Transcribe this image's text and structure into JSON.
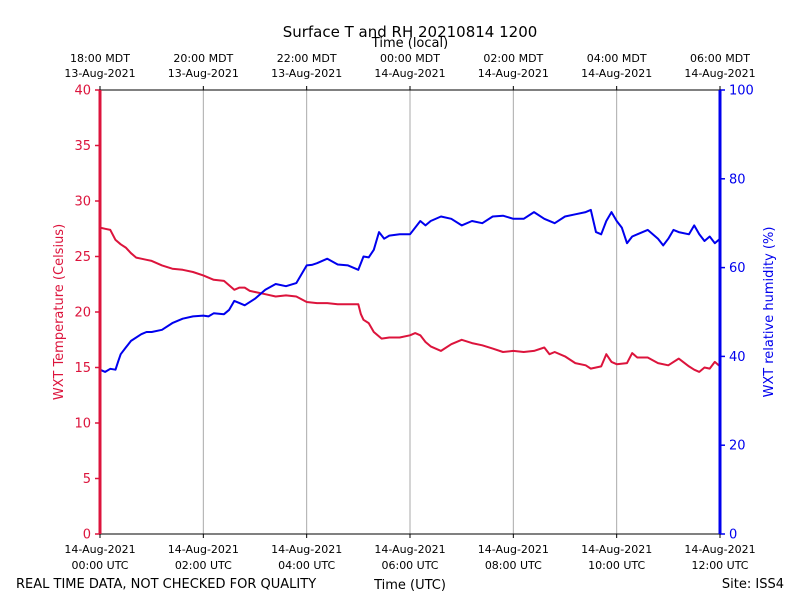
{
  "chart_data": {
    "type": "line",
    "title": "Surface T and RH 20210814 1200",
    "top_axis_label": "Time (local)",
    "xlabel": "Time (UTC)",
    "ylabel_left": "WXT Temperature (Celsius)",
    "ylabel_right": "WXT relative humidity (%)",
    "footer_left": "REAL TIME DATA, NOT CHECKED FOR QUALITY",
    "footer_right": "Site: ISS4",
    "xlim_hours": [
      0,
      12
    ],
    "ylim_left": [
      0,
      40
    ],
    "ylim_right": [
      0,
      100
    ],
    "y_ticks_left": [
      "0",
      "5",
      "10",
      "15",
      "20",
      "25",
      "30",
      "35",
      "40"
    ],
    "y_ticks_right": [
      "0",
      "20",
      "40",
      "60",
      "80",
      "100"
    ],
    "bottom_ticks": [
      {
        "hour": 0,
        "line1": "14-Aug-2021",
        "line2": "00:00 UTC"
      },
      {
        "hour": 2,
        "line1": "14-Aug-2021",
        "line2": "02:00 UTC"
      },
      {
        "hour": 4,
        "line1": "14-Aug-2021",
        "line2": "04:00 UTC"
      },
      {
        "hour": 6,
        "line1": "14-Aug-2021",
        "line2": "06:00 UTC"
      },
      {
        "hour": 8,
        "line1": "14-Aug-2021",
        "line2": "08:00 UTC"
      },
      {
        "hour": 10,
        "line1": "14-Aug-2021",
        "line2": "10:00 UTC"
      },
      {
        "hour": 12,
        "line1": "14-Aug-2021",
        "line2": "12:00 UTC"
      }
    ],
    "top_ticks": [
      {
        "hour": 0,
        "line1": "18:00 MDT",
        "line2": "13-Aug-2021"
      },
      {
        "hour": 2,
        "line1": "20:00 MDT",
        "line2": "13-Aug-2021"
      },
      {
        "hour": 4,
        "line1": "22:00 MDT",
        "line2": "13-Aug-2021"
      },
      {
        "hour": 6,
        "line1": "00:00 MDT",
        "line2": "14-Aug-2021"
      },
      {
        "hour": 8,
        "line1": "02:00 MDT",
        "line2": "14-Aug-2021"
      },
      {
        "hour": 10,
        "line1": "04:00 MDT",
        "line2": "14-Aug-2021"
      },
      {
        "hour": 12,
        "line1": "06:00 MDT",
        "line2": "14-Aug-2021"
      }
    ],
    "colors": {
      "temperature": "#dc143c",
      "humidity": "#0000ee",
      "grid": "#aaaaaa"
    },
    "series": [
      {
        "name": "WXT Temperature",
        "axis": "left",
        "x": [
          0,
          0.1,
          0.2,
          0.3,
          0.4,
          0.5,
          0.6,
          0.7,
          0.8,
          0.9,
          1.0,
          1.2,
          1.4,
          1.6,
          1.8,
          2.0,
          2.2,
          2.4,
          2.6,
          2.7,
          2.8,
          2.9,
          3.0,
          3.2,
          3.4,
          3.6,
          3.8,
          4.0,
          4.2,
          4.4,
          4.6,
          4.8,
          5.0,
          5.05,
          5.1,
          5.2,
          5.3,
          5.45,
          5.6,
          5.8,
          6.0,
          6.1,
          6.2,
          6.3,
          6.4,
          6.6,
          6.8,
          7.0,
          7.2,
          7.4,
          7.6,
          7.8,
          8.0,
          8.2,
          8.4,
          8.6,
          8.7,
          8.8,
          9.0,
          9.2,
          9.4,
          9.5,
          9.7,
          9.8,
          9.9,
          10.0,
          10.2,
          10.3,
          10.4,
          10.6,
          10.8,
          11.0,
          11.2,
          11.4,
          11.5,
          11.6,
          11.7,
          11.8,
          11.9,
          12.0
        ],
        "values": [
          27.6,
          27.5,
          27.4,
          26.5,
          26.1,
          25.8,
          25.3,
          24.9,
          24.8,
          24.7,
          24.6,
          24.2,
          23.9,
          23.8,
          23.6,
          23.3,
          22.9,
          22.8,
          22.0,
          22.2,
          22.2,
          21.9,
          21.8,
          21.6,
          21.4,
          21.5,
          21.4,
          20.9,
          20.8,
          20.8,
          20.7,
          20.7,
          20.7,
          19.8,
          19.3,
          19.0,
          18.2,
          17.6,
          17.7,
          17.7,
          17.9,
          18.1,
          17.9,
          17.3,
          16.9,
          16.5,
          17.1,
          17.5,
          17.2,
          17.0,
          16.7,
          16.4,
          16.5,
          16.4,
          16.5,
          16.8,
          16.2,
          16.4,
          16.0,
          15.4,
          15.2,
          14.9,
          15.1,
          16.2,
          15.5,
          15.3,
          15.4,
          16.3,
          15.9,
          15.9,
          15.4,
          15.2,
          15.8,
          15.1,
          14.8,
          14.6,
          15.0,
          14.9,
          15.5,
          15.1
        ]
      },
      {
        "name": "WXT relative humidity",
        "axis": "right",
        "x": [
          0,
          0.1,
          0.2,
          0.3,
          0.35,
          0.4,
          0.5,
          0.6,
          0.8,
          0.9,
          1.0,
          1.2,
          1.4,
          1.6,
          1.8,
          2.0,
          2.1,
          2.2,
          2.4,
          2.5,
          2.6,
          2.7,
          2.8,
          3.0,
          3.2,
          3.4,
          3.6,
          3.8,
          4.0,
          4.1,
          4.2,
          4.4,
          4.6,
          4.8,
          5.0,
          5.1,
          5.2,
          5.3,
          5.4,
          5.5,
          5.6,
          5.8,
          6.0,
          6.2,
          6.3,
          6.4,
          6.6,
          6.8,
          7.0,
          7.2,
          7.4,
          7.6,
          7.8,
          8.0,
          8.2,
          8.4,
          8.6,
          8.8,
          9.0,
          9.2,
          9.4,
          9.5,
          9.6,
          9.7,
          9.8,
          9.9,
          10.0,
          10.1,
          10.2,
          10.3,
          10.4,
          10.6,
          10.8,
          10.9,
          11.0,
          11.1,
          11.2,
          11.4,
          11.5,
          11.6,
          11.7,
          11.8,
          11.9,
          12.0
        ],
        "values": [
          37.0,
          36.5,
          37.2,
          37.0,
          38.8,
          40.5,
          42.0,
          43.5,
          45.0,
          45.5,
          45.5,
          46.0,
          47.5,
          48.5,
          49.0,
          49.2,
          49.0,
          49.7,
          49.5,
          50.5,
          52.5,
          52.0,
          51.5,
          53.0,
          55.0,
          56.3,
          55.8,
          56.5,
          60.5,
          60.6,
          61.0,
          62.0,
          60.7,
          60.5,
          59.5,
          62.5,
          62.3,
          64.0,
          68.0,
          66.5,
          67.2,
          67.5,
          67.5,
          70.5,
          69.5,
          70.5,
          71.5,
          71.0,
          69.5,
          70.5,
          70.0,
          71.5,
          71.7,
          71.0,
          71.0,
          72.5,
          71.0,
          70.0,
          71.5,
          72.0,
          72.5,
          73.0,
          68.0,
          67.5,
          70.5,
          72.5,
          70.5,
          69.0,
          65.5,
          67.0,
          67.5,
          68.5,
          66.5,
          65.0,
          66.5,
          68.5,
          68.0,
          67.5,
          69.5,
          67.5,
          66.0,
          67.0,
          65.5,
          66.5
        ]
      }
    ]
  }
}
